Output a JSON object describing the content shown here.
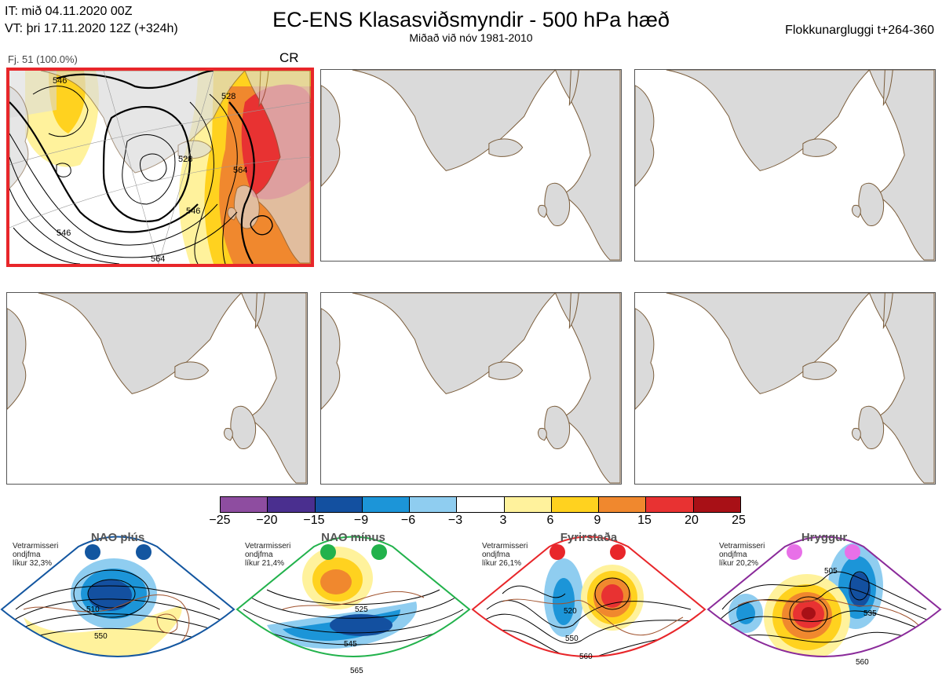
{
  "header": {
    "it_line": "IT: mið 04.11.2020 00Z",
    "vt_line": "VT: þri 17.11.2020 12Z  (+324h)",
    "title": "EC-ENS Klasasviðsmyndir - 500 hPa hæð",
    "subtitle": "Miðað við nóv 1981-2010",
    "window_label": "Flokkunargluggi t+264-360"
  },
  "cluster": {
    "members_label": "Fj. 51 (100.0%)",
    "regime_code": "CR",
    "highlight_color": "#e8262a",
    "contour_labels": [
      "546",
      "528",
      "546",
      "564",
      "546",
      "564",
      "528"
    ]
  },
  "colorbar": {
    "colors": [
      "#8e4da0",
      "#4a2f8f",
      "#1350a0",
      "#1c95d8",
      "#8fcdf0",
      "#ffffff",
      "#fff29c",
      "#ffd21f",
      "#f0882e",
      "#e83232",
      "#a81016"
    ],
    "ticks": [
      "−25",
      "−20",
      "−15",
      "−9",
      "−6",
      "−3",
      "3",
      "6",
      "9",
      "15",
      "20",
      "25"
    ]
  },
  "regimes": [
    {
      "name": "NAO plús",
      "info": [
        "Vetrarmisseri",
        "ondjfma",
        "líkur 32,3%"
      ],
      "color": "#1356a0",
      "labels": [
        "510",
        "550"
      ]
    },
    {
      "name": "NAO mínus",
      "info": [
        "Vetrarmisseri",
        "ondjfma",
        "líkur 21,4%"
      ],
      "color": "#22b24c",
      "labels": [
        "525",
        "545",
        "565"
      ]
    },
    {
      "name": "Fyrirstaða",
      "info": [
        "Vetrarmisseri",
        "ondjfma",
        "líkur 26,1%"
      ],
      "color": "#e8262a",
      "labels": [
        "520",
        "550",
        "560"
      ]
    },
    {
      "name": "Hryggur",
      "info": [
        "Vetrarmisseri",
        "ondjfma",
        "líkur 20,2%"
      ],
      "color": "#e870e8",
      "labels": [
        "505",
        "535",
        "560"
      ]
    }
  ]
}
